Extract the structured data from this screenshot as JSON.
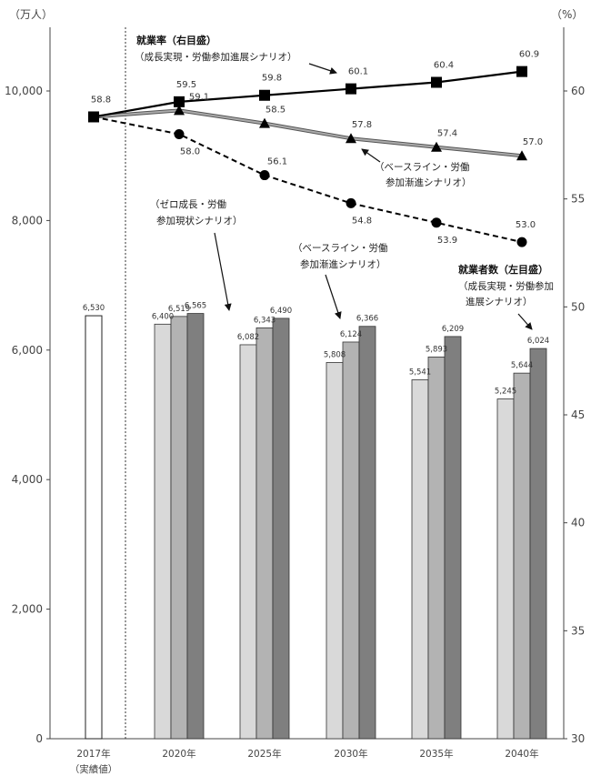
{
  "chart_data": {
    "type": "bar+line",
    "left_unit": "（万人）",
    "right_unit": "（%）",
    "left_axis": {
      "ylim": [
        0,
        11000
      ],
      "ticks": [
        "0",
        "2,000",
        "4,000",
        "6,000",
        "8,000",
        "10,000"
      ],
      "tick_values": [
        0,
        2000,
        4000,
        6000,
        8000,
        10000
      ]
    },
    "right_axis": {
      "ylim": [
        30,
        64
      ],
      "ticks": [
        "30",
        "35",
        "40",
        "45",
        "50",
        "55",
        "60"
      ],
      "tick_values": [
        30,
        35,
        40,
        45,
        50,
        55,
        60
      ]
    },
    "categories": [
      "2017年",
      "2020年",
      "2025年",
      "2030年",
      "2035年",
      "2040年"
    ],
    "category_sublabel": "（実績値）",
    "bars_actual": {
      "value": 6530,
      "label": "6,530"
    },
    "bar_series": [
      {
        "values": [
          6400,
          6082,
          5808,
          5541,
          5245
        ],
        "labels": [
          "6,400",
          "6,082",
          "5,808",
          "5,541",
          "5,245"
        ],
        "color": "#d9d9d9"
      },
      {
        "values": [
          6519,
          6343,
          6124,
          5893,
          5644
        ],
        "labels": [
          "6,519",
          "6,343",
          "6,124",
          "5,893",
          "5,644"
        ],
        "color": "#b3b3b3"
      },
      {
        "values": [
          6565,
          6490,
          6366,
          6209,
          6024
        ],
        "labels": [
          "6,565",
          "6,490",
          "6,366",
          "6,209",
          "6,024"
        ],
        "color": "#7f7f7f"
      }
    ],
    "line_series": [
      {
        "marker": "square",
        "style": "solid",
        "color": "#000000",
        "values": [
          58.8,
          59.5,
          59.8,
          60.1,
          60.4,
          60.9
        ],
        "labels": [
          "58.8",
          "59.5",
          "59.8",
          "60.1",
          "60.4",
          "60.9"
        ]
      },
      {
        "marker": "triangle",
        "style": "solid-gray",
        "color": "#666666",
        "values": [
          58.8,
          59.1,
          58.5,
          57.8,
          57.4,
          57.0
        ],
        "labels": [
          "",
          "59.1",
          "58.5",
          "57.8",
          "57.4",
          "57.0"
        ]
      },
      {
        "marker": "circle",
        "style": "dashed",
        "color": "#000000",
        "values": [
          58.8,
          58.0,
          56.1,
          54.8,
          53.9,
          53.0
        ],
        "labels": [
          "",
          "58.0",
          "56.1",
          "54.8",
          "53.9",
          "53.0"
        ]
      }
    ],
    "annotations": {
      "rate_title": "就業率（右目盛）",
      "rate_growth": "（成長実現・労働参加進展シナリオ）",
      "rate_baseline_1": "（ベースライン・労働",
      "rate_baseline_2": "参加漸進シナリオ）",
      "zero_1": "（ゼロ成長・労働",
      "zero_2": "参加現状シナリオ）",
      "bar_baseline_1": "（ベースライン・労働",
      "bar_baseline_2": "参加漸進シナリオ）",
      "workers_title": "就業者数（左目盛）",
      "workers_growth_1": "（成長実現・労働参加",
      "workers_growth_2": "進展シナリオ）"
    }
  }
}
